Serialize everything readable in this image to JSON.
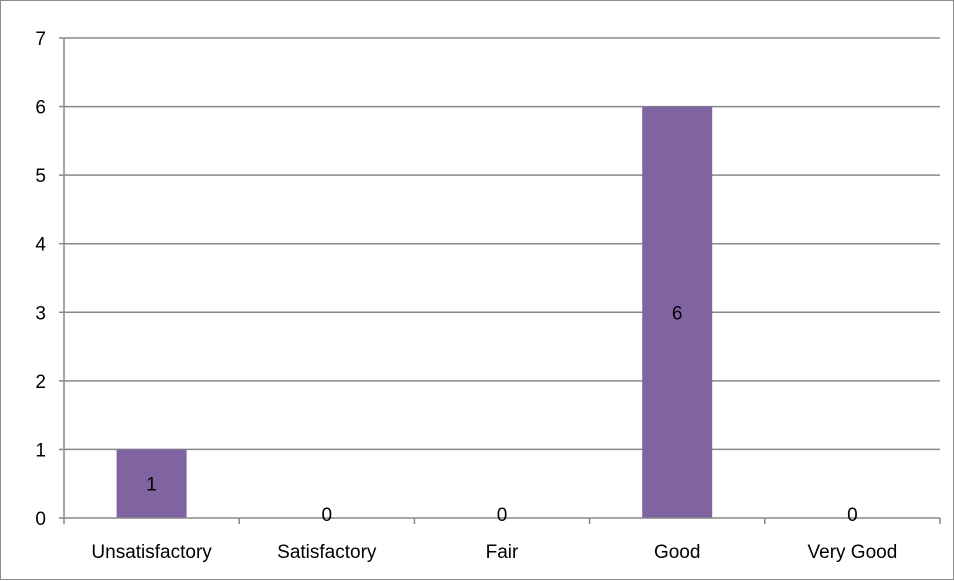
{
  "chart_data": {
    "type": "bar",
    "categories": [
      "Unsatisfactory",
      "Satisfactory",
      "Fair",
      "Good",
      "Very Good"
    ],
    "values": [
      1,
      0,
      0,
      6,
      0
    ],
    "data_labels": [
      "1",
      "0",
      "0",
      "6",
      "0"
    ],
    "title": "",
    "xlabel": "",
    "ylabel": "",
    "ylim": [
      0,
      7
    ],
    "y_ticks": [
      "0",
      "1",
      "2",
      "3",
      "4",
      "5",
      "6",
      "7"
    ],
    "grid": true,
    "legend": "none",
    "bar_color": "#8064a2",
    "grid_color": "#888888"
  }
}
